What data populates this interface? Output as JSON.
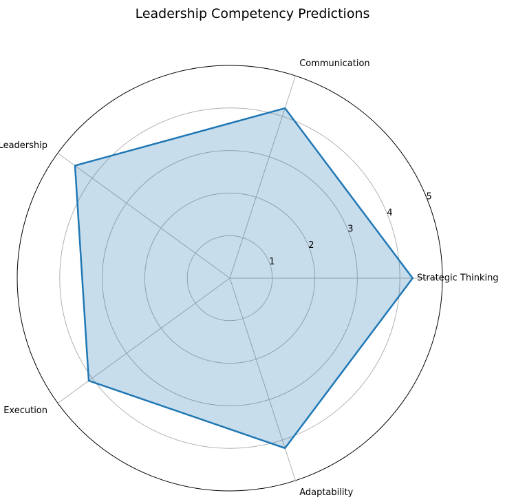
{
  "chart_data": {
    "type": "radar",
    "title": "Leadership Competency Predictions",
    "categories": [
      "Strategic Thinking",
      "Communication",
      "Team Leadership",
      "Execution",
      "Adaptability"
    ],
    "series": [
      {
        "values": [
          4.3,
          4.2,
          4.5,
          4.1,
          4.2
        ]
      }
    ],
    "r_ticks": [
      "1",
      "2",
      "3",
      "4",
      "5"
    ],
    "rlim": [
      0,
      5
    ],
    "grid": true,
    "colors": {
      "line": "#1f77b4",
      "fill": "#1f77b4",
      "grid": "#b0b0b0",
      "outline": "#000000"
    }
  }
}
